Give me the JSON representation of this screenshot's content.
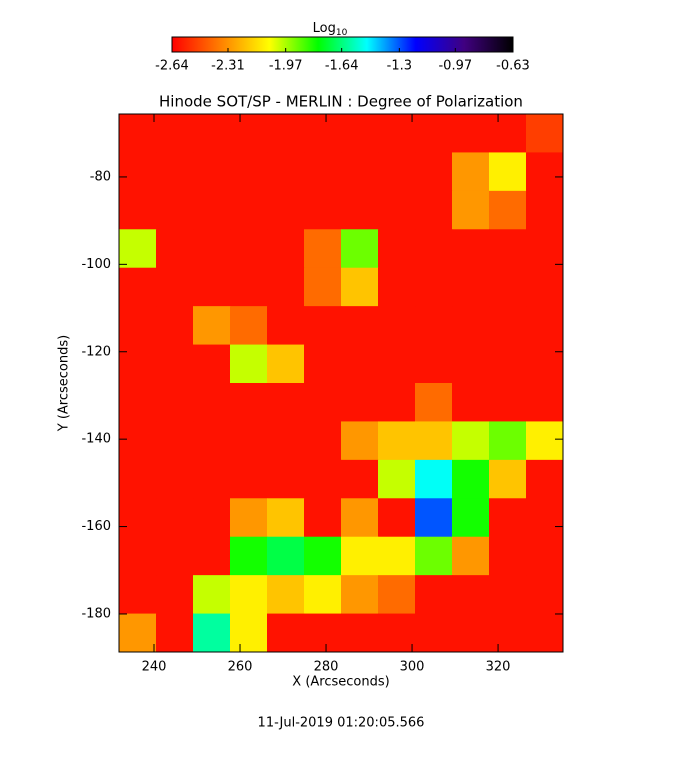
{
  "chart_data": {
    "type": "heatmap",
    "title": "Hinode SOT/SP - MERLIN : Degree of Polarization",
    "x_label": "X (Arcseconds)",
    "y_label": "Y (Arcseconds)",
    "footer": "11-Jul-2019 01:20:05.566",
    "colorbar_label": {
      "text": "Log",
      "subscript": "10"
    },
    "colorscale": [
      "#ff0000",
      "#ff8000",
      "#ffff00",
      "#00ff00",
      "#00ffff",
      "#0000ff",
      "#400080",
      "#000000"
    ],
    "clim": [
      -2.64,
      -0.63
    ],
    "cticks": [
      -2.64,
      -2.31,
      -1.97,
      -1.64,
      -1.3,
      -0.97,
      -0.63
    ],
    "xlim": [
      231.86,
      335.1
    ],
    "ylim": [
      -188.7,
      -65.6
    ],
    "xticks": [
      240,
      260,
      280,
      300,
      320
    ],
    "yticks": [
      -80,
      -100,
      -120,
      -140,
      -160,
      -180
    ],
    "z": [
      [
        -2.6,
        -2.6,
        -2.6,
        -2.6,
        -2.6,
        -2.6,
        -2.6,
        -2.6,
        -2.6,
        -2.6,
        -2.6,
        -2.5
      ],
      [
        -2.6,
        -2.6,
        -2.6,
        -2.6,
        -2.6,
        -2.6,
        -2.6,
        -2.6,
        -2.6,
        -2.3,
        -2.1,
        -2.6
      ],
      [
        -2.6,
        -2.6,
        -2.6,
        -2.6,
        -2.6,
        -2.6,
        -2.6,
        -2.6,
        -2.6,
        -2.3,
        -2.4,
        -2.6
      ],
      [
        -2.0,
        -2.6,
        -2.6,
        -2.6,
        -2.6,
        -2.4,
        -1.9,
        -2.6,
        -2.6,
        -2.6,
        -2.6,
        -2.6
      ],
      [
        -2.6,
        -2.6,
        -2.6,
        -2.6,
        -2.6,
        -2.4,
        -2.2,
        -2.6,
        -2.6,
        -2.6,
        -2.6,
        -2.6
      ],
      [
        -2.6,
        -2.6,
        -2.3,
        -2.4,
        -2.6,
        -2.6,
        -2.6,
        -2.6,
        -2.6,
        -2.6,
        -2.6,
        -2.6
      ],
      [
        -2.6,
        -2.6,
        -2.6,
        -2.0,
        -2.2,
        -2.6,
        -2.6,
        -2.6,
        -2.6,
        -2.6,
        -2.6,
        -2.6
      ],
      [
        -2.6,
        -2.6,
        -2.6,
        -2.6,
        -2.6,
        -2.6,
        -2.6,
        -2.6,
        -2.4,
        -2.6,
        -2.6,
        -2.6
      ],
      [
        -2.6,
        -2.6,
        -2.6,
        -2.6,
        -2.6,
        -2.6,
        -2.3,
        -2.2,
        -2.2,
        -2.0,
        -1.9,
        -2.1
      ],
      [
        -2.6,
        -2.6,
        -2.6,
        -2.6,
        -2.6,
        -2.6,
        -2.6,
        -2.0,
        -1.5,
        -1.8,
        -2.2,
        -2.6
      ],
      [
        -2.6,
        -2.6,
        -2.6,
        -2.3,
        -2.2,
        -2.6,
        -2.3,
        -2.6,
        -1.3,
        -1.8,
        -2.6,
        -2.6
      ],
      [
        -2.6,
        -2.6,
        -2.6,
        -1.8,
        -1.7,
        -1.8,
        -2.1,
        -2.1,
        -1.9,
        -2.3,
        -2.6,
        -2.6
      ],
      [
        -2.6,
        -2.6,
        -2.0,
        -2.1,
        -2.2,
        -2.1,
        -2.3,
        -2.4,
        -2.6,
        -2.6,
        -2.6,
        -2.6
      ],
      [
        -2.3,
        -2.6,
        -1.6,
        -2.1,
        -2.6,
        -2.6,
        -2.6,
        -2.6,
        -2.6,
        -2.6,
        -2.6,
        -2.6
      ]
    ]
  }
}
